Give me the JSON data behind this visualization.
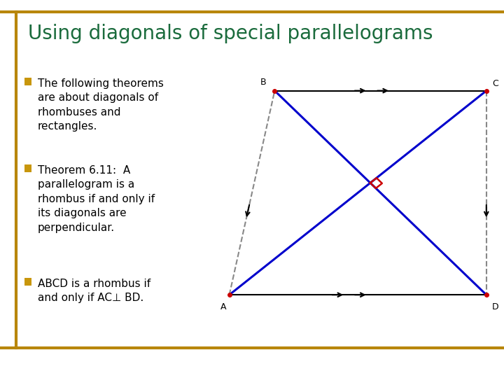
{
  "title": "Using diagonals of special parallelograms",
  "title_color": "#1a6b3c",
  "border_color": "#b8860b",
  "bg_color": "#ffffff",
  "bullet_color": "#c8960c",
  "text_color": "#000000",
  "bullets": [
    "The following theorems\nare about diagonals of\nrhombuses and\nrectangles.",
    "Theorem 6.11:  A\nparallelogram is a\nrhombus if and only if\nits diagonals are\nperpendicular.",
    "ABCD is a rhombus if\nand only if AC⊥ BD."
  ],
  "B": [
    0.545,
    0.76
  ],
  "C": [
    0.965,
    0.76
  ],
  "D": [
    0.965,
    0.22
  ],
  "A": [
    0.455,
    0.22
  ],
  "diagonal_color": "#0000cc",
  "side_color_solid": "#000000",
  "side_color_dashed": "#888888",
  "right_angle_color": "#cc0000",
  "label_color": "#000000"
}
